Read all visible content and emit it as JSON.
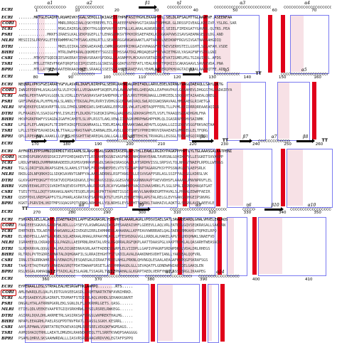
{
  "sequences": [
    "ECRI",
    "CORI",
    "TCRI",
    "PSRI",
    "MLRI",
    "DTRI",
    "BHRI",
    "CSRI",
    "TSRI",
    "BPRI"
  ],
  "highlighted_sequence": "CORI",
  "blocks": [
    {
      "ss": [
        {
          "label": "α1",
          "kind": "helix"
        },
        {
          "label": "α2",
          "kind": "helix"
        },
        {
          "label": "β1",
          "kind": "strand"
        },
        {
          "label": "η1",
          "kind": "helix"
        },
        {
          "label": "α3",
          "kind": "helix"
        },
        {
          "label": "α4",
          "kind": "helix"
        }
      ],
      "ruler": [
        "1",
        "10",
        "20",
        "30",
        "40",
        "50",
        "60",
        "70"
      ],
      "rows": [
        ".......MRTGLEGAQHFLRQAMIVKYSGALSEHQLLQKIAGEISTHPNFASIYHGHLEKAAPVPL.SELDLRFSALMTTGLAAVHVF.ASEENFAA",
        "..................MNRLDRQGIAALQSKYEREPELTCLFHAEEEFAPKHVGTIASRATRGMMGR.GLDRSSPIVEAGLKASIVP.YSLRG.SAR",
        "..................MSKLEAIRSALQEKYTHLGQDPVAYSSSEFNLLKLARALAGNSRSMGE.SEIELFIMIKGATYGAVMR.QLTRS.PEA",
        ".............MKKFSIRAESLKALSEKPQGEPLLTLEHASVMKSVTPKHIRSAEFAEKLKIGGKAPVWSISAVSAEAMASELVLDG.AND",
        "MESIIISLPRYVGLETEERWMMPAGTHTSAKLKENLRTLLSEAMGRGGANGWVAAKTLAPTAAPDLNEDKNPFRGVSIVGATNAYAAHGDIQ",
        "..................MKELQIIKALSEKGAEAVAELCWMKLHGKHPRIHKGAIVVHAGGFASTAEVSERHSTEILGSHTLSELAFAH.VSDE",
        "..................MTRLDWPEARALQQKMDEYTSGSIIFTHSSAATDGLMRQAQEGPFWIVAIETMGVLYASAGFNFYSTKLGNI",
        ".......MTKYSTSQDIRIESAKERAYIEHAVSRAAYGFDDGLSLASNMFPLMCKAVVSRTAIPEATVATIGMELMSLTGIAVIHDL.AFDS",
        ".......MTLLETREVFNQATQRQFSQIIPQISEELGLSNISGTSGDKFGSTEFATLYEALRRKPTPQHIISCAKASAAVLSAVVAVDA.PNA",
        ".......MTLLATREEWQAATERKAAQWMPELSRAAGLSSEISSFAHTFGRAEFAVLYEAMLRLRERQPKHVAGTAIVAAALAAPHQTFE.ADE"
      ]
    },
    {
      "ss": [
        {
          "label": "β2",
          "kind": "strand"
        },
        {
          "label": "η2",
          "kind": "helix"
        },
        {
          "label": "η3",
          "kind": "helix"
        },
        {
          "label": "η4",
          "kind": "helix"
        },
        {
          "label": "β3",
          "kind": "strand"
        },
        {
          "label": "η5",
          "kind": "helix"
        },
        {
          "label": "TT",
          "kind": "turn"
        },
        {
          "label": "α5",
          "kind": "helix"
        }
      ],
      "ruler": [
        "80",
        "90",
        "100",
        "110",
        "120",
        "130",
        "140",
        "150",
        "160"
      ],
      "rows": [
        "NEQNRLVPKSFGEIARAEYGFVLASVRLIKAFLNIRHPGLSEDRLRAHRDALRHIFADLLARVLEDELNIRNGTVAGLDAEAQLLSAYLQKTG",
        "IWNGEPDDPHLASALGAVGLVLDYCNVLLVEGWAAHFSKQEPLRVLAWAVWFHRLGHEQADLLEAFHAVPAVLGQAAHEVLDHGGSTHLAADAIRYA",
        "AWENLPEHTAAPGVLGQDLSLVIRLLEVYSASHAVSAPIAHDFKRLVYSVLRRSTPDRGNAGLLDHRIEDLSDQGLHTAIAAEALQREGL",
        "GRFSPWGEALPLHFMLHGLSLANDLYTDGSALPHLRVRYIVDHGSGQFGAWGVAQLSWLRDIGWQSNAVAALHMLAAEGLRIAETGA",
        "NFAQEKEPQIAEAVRFTRLSSLIPHDLSRMDIAELSHEGARGLEEPGRPLVWLATLHDTAQPFFERLTLLPVMLKEIDRRQREAAEAQIGR",
        "PLFRAGEGYLSSAIGGFNYLISHLEIFLDLKDGTSGEQKIGPHGLWALHNSLGDKHASPHSTLVSFLTKAAQDSGFADHGHLFHA",
        "HKVPGRKPRWFYSSAGDAIGAFHCAHDTLSLVPLRSSTLAKLVEWLIIAAGNVMRPHWGHPFKMLQLIGASRAPEGHVSAINMK",
        "LPSLPLEFLANQAGFLTEIRHTAIKQFEGSKAMAASLLTDELMIAALPDAAKKSWWLAEHVTLGQAALLGIIGDSQVSGGFRKVAQTAA",
        "LPLLSTEAFEAVADIALNLTTAALLHRASTAAPLEARNALEDLAVSLLDDTSHFSYPHHIHRVVIRAAEAEGVMAEEGLELTFQRG",
        "QPLLRPEAMAALAAAKLLLQFALLHDSGHTTAEAREQALQALLGALLDSDLPYTEHCHLTRVAGRLLEGSGLTDTDAEGQIRDTLQ"
      ]
    },
    {
      "ss": [
        {
          "label": "β4",
          "kind": "strand"
        },
        {
          "label": "β5",
          "kind": "strand"
        },
        {
          "label": "α6",
          "kind": "helix"
        },
        {
          "label": "β6",
          "kind": "strand"
        },
        {
          "label": "TT",
          "kind": "turn"
        },
        {
          "label": "β7",
          "kind": "strand"
        },
        {
          "label": "α7",
          "kind": "helix"
        },
        {
          "label": "β8",
          "kind": "strand"
        },
        {
          "label": "TT",
          "kind": "turn"
        }
      ],
      "ruler": [
        "170",
        "180",
        "190",
        "200",
        "210",
        "220",
        "230",
        "240",
        "250",
        "260"
      ],
      "rows": [
        "AYFKKELEPPSVMNIQDRMDITVDIAAMLSLAVGPSSKLSGKNIEASERLNPSTHLLEAWLLRGIKYPAGKPPFHPTLYLTGLAAASGALKATPENI",
        "HCEHDSPGRKVVDSDSKIIVFPIHEQAKEVTTLRSEAHPDGSNIVASFNKEVNHGRHAYEANLTAVRSNLGQHIKKFVLLESGKETSVVAHPP",
        "LRDLWFNRDLDVMMNRNRADEEDLRSMSVQHRAVNRGDLSWVAQSRASQALELRTSRDHVISSLSRPSVLTQLNHGSTNAEPLRPDLLWTNGS",
        "TGLSLDRIFSDLRKAPSGEHLSLAAHLSTTAPLFPLKHANEPDELVTSTGTNAFSNPTAGARGFKSYFPSSNVKLWTLAEPSRLK",
        "RKDLGDLNPQRKHIGLSDQKSAVNVTGNPFYALAAELNDRNSLRSPTANSTSLLESVVGAFPSRLASLSSIFPALLGGLKDRSLVK",
        "GLKVGKPFEQKGFTYDSKTVDIPDASDGKVLIPKQSAVGSIQGLGGEGVNQFGGRNNVAVPTAEVVDHSFLAAAAALPNVNPRVFLEL",
        "VGENVEEAKLRTCSSVKDHTAQEVDSVPEPLAALRCDGPLRCAYVGANWHRPVAGSIVAASHRKLFLSGLSPALIAKNDQHAQATGAT",
        "TSESTYTSLLDQTYSRKAKGLNAPGTESQELRSHLAKPKTTAVNETIGSETIANVVLNAHRKEGMTPAVKLSLPRNALEDWPFAEIR",
        "QSEPPDVLVREPGAPFGTSLPHARLASRATASTSADPRLKTGTLHSPLEHSRETNRLAPGTALRELGLEVYGAKGADHGEIPSNVRG",
        "KGKTLPGRVIHLVKDTMPSSQAGSPQTVPRKLARKGHLLYQLNDHSLEYSAFHTTGKRKLTAAHAIVLAQKTGLSRSNLAVPLAEEVLE"
      ]
    },
    {
      "ss": [
        {
          "label": "TT",
          "kind": "turn"
        },
        {
          "label": "α8",
          "kind": "helix"
        },
        {
          "label": "β9",
          "kind": "strand"
        },
        {
          "label": "α9",
          "kind": "helix"
        },
        {
          "label": "η6",
          "kind": "helix"
        },
        {
          "label": "β10",
          "kind": "strand"
        },
        {
          "label": "α10",
          "kind": "helix"
        }
      ],
      "ruler": [
        "270",
        "280",
        "290",
        "300",
        "310",
        "320",
        "330",
        "340",
        "350"
      ],
      "rows": [
        "FSRVADLGELLALAHFLIDAEFNAIHLLAPFGEAGNASRLVSYAMDRLAAARLAGRLVPDSVIAELSATLSRAADEARDLGHALVHVELERLAQS",
        "FAAIEEESGKAVLGANDFWLRDLLLGYSEYVLASWRGAAQIWVSPESAAEAIVHFLGDEEVLLAQLVRLEATERLGQVSEQKRASALLSAKLAN",
        "EHRTKEELTDLAEPHTVWWSARGLAIIVDGEGIRRLEAMHHERLAHAARALLKPFEAVVWRRRAELQALEAEHSRMKAHSVTQPKELRPQ",
        "ELVNDPEGLLAATGALRNDLSQLAERAALRHAGLRPAAYMLKHLLPTESHSDGGVGLLRRDLALHAKELAPGTRLHDQHWKLSNAEFVD",
        "IGRAHEEQLCKRAQQTGSLPAGDLLAEDPRNLRHATALVRSLRGQRRALRGFQKPLAATTDAASPGLVAKPTNRKLALQASARHTWEASNIR",
        "SLRDKRRVALQQGGTIALHVLDIGNEDNVASRLAATFADEKSDGRPLELVIIDPLLGAPIVPAGNFSRDNPDRALVDALDRLRHEGS",
        "RLTRDLPVTEGDREAHNATALDQHGNAFILSLRRAIEHGHTFSTLKDILAVALDAAKDNHSVDHTIANLLYARKEALQQFVRL",
        "IRNLSTAGRRKAHRIDAVVDNAIPLEESQAEGALDIRAATVREELNHGLPRKNLQHVNGQLESAALAEAGAFHWPQGPSKRAFSGS",
        "TAAGYETAQTHGRVLANKEAGSRQTPDATDWAAPSRSETLASDVHRAAGDLGLLSEVAQATFLGDNDWHNIAFIQELGAKQLEN",
        "RSLNSGALKWHAQKDGEPTAIKLALESLAGNLTSSAGRLTVQATPNAHALGLKGRPTAEDLVERFYHRPLASSSSRGLIKAAPEG"
      ]
    },
    {
      "ss": [
        {
          "label": "α11",
          "kind": "helix"
        },
        {
          "label": "α12",
          "kind": "helix"
        },
        {
          "label": "α13",
          "kind": "helix"
        },
        {
          "label": "α14",
          "kind": "helix"
        }
      ],
      "ruler": [
        "360",
        "370",
        "380",
        "390",
        "400",
        "410"
      ],
      "rows": [
        "EYPENAALLDSLSTRHALEALHESRGWFHKLAAMPQ........RTS.....",
        "AMLEWARQLELQALPLEDTGVASEEGASDLLGQMTNARTKTNFAVNIHRKD.",
        "ALPDSAAEKYLRGAIRKFLTDVMAFFSTDIYVLAQLVKHDLSEHAKKGNVRT",
        "DNGRLHTALATRRNPGKRLEKLSGNLDLFLATKRHRLGETS.QASG......",
        "ETIELQDLVEEKEVAAFRTGIQVSRKHRWLPPSILRSRELRWKEGG......",
        "ASIRRLDQVLDHLAKRMETRLSASIRKSAFVRGSLWVMREKTHALMG.....",
        "NPAPLEEAGRHLPAELRSQFPDTNVFRATLTIASSLSGKH.KESRRL.....",
        "AAYLRPHWALVSNRTATRQTKAEVASQMLRAVSRELVDGQKFWGMSAGS...",
        "AVMQSHAIQTRHLLAEATLDMGEKLRAKNDRFEQLTTLSRRTKVWQPSAAGGGG",
        "PSAMLQHRVLSKSAAHWRDALLLIASVRSRGKAAGVRDVVKLEGTAFPSPPQ"
      ]
    }
  ]
}
